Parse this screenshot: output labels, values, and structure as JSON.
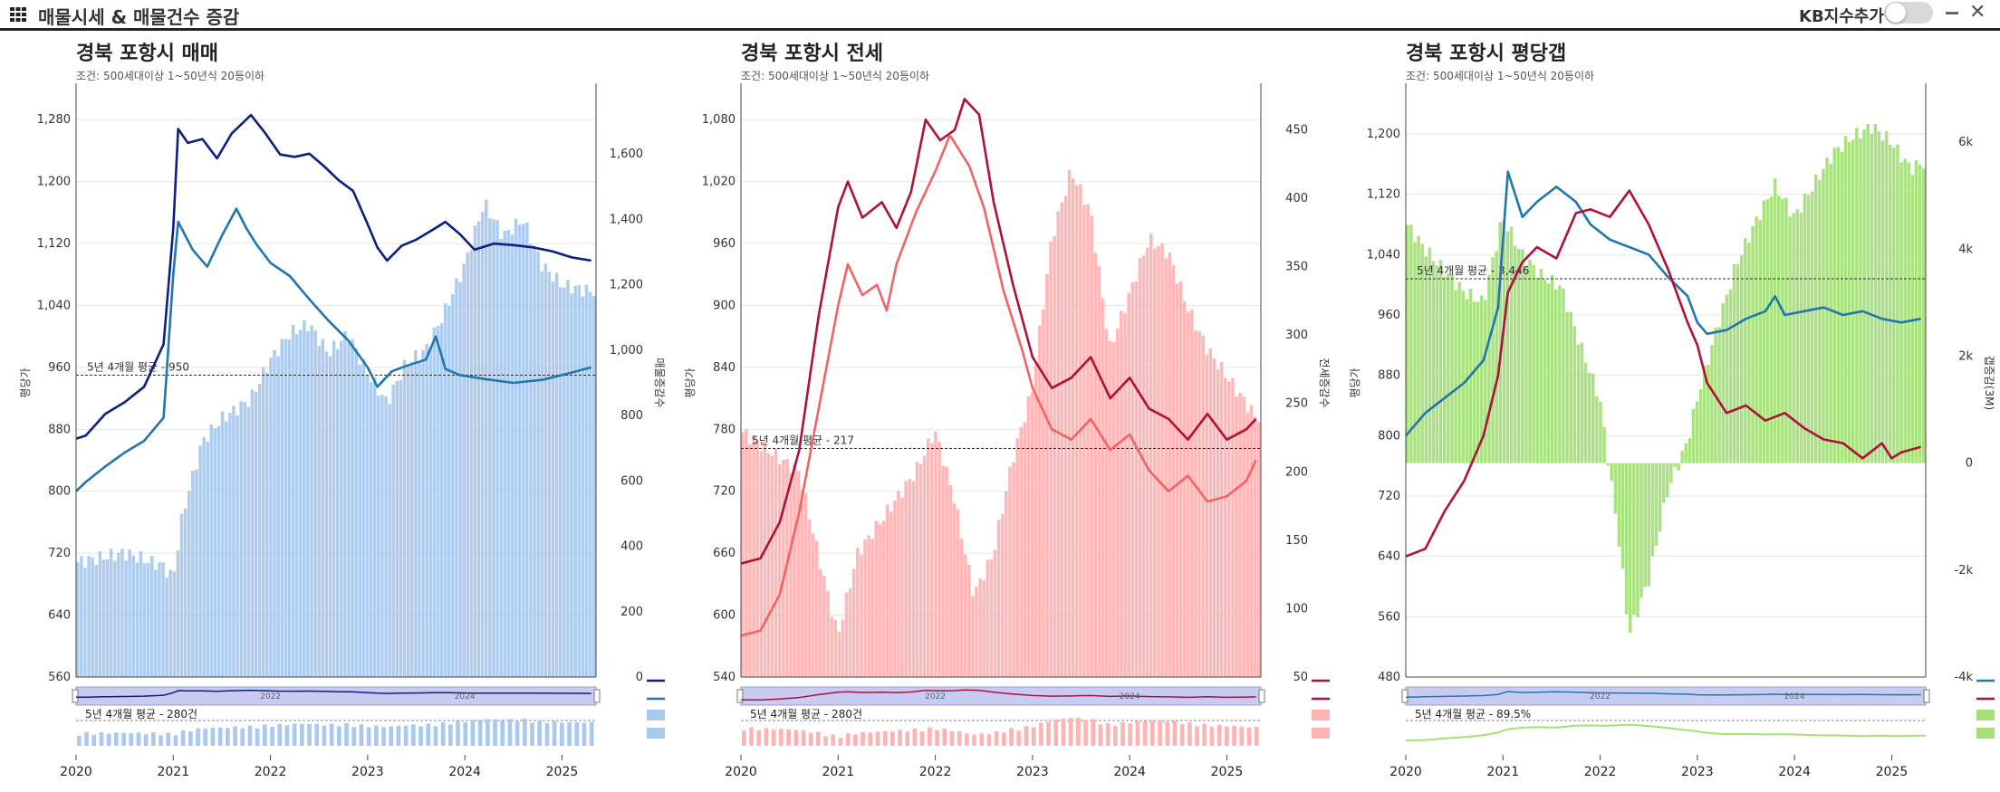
{
  "app": {
    "title": "매물시세 & 매물건수 증감",
    "kb_toggle_label": "KB지수추가",
    "kb_toggle_on": false
  },
  "icons": {
    "menu": "grid-menu-icon",
    "minimize": "minimize-icon",
    "close": "close-icon"
  },
  "chart_data": [
    {
      "type": "line",
      "title": "경북 포항시 매매",
      "subtitle": "조건: 500세대이상 1~50년식 20등이하",
      "ylabel_left": "평당가",
      "ylabel_right": "매물증감수",
      "x_ticks": [
        "2020",
        "2021",
        "2022",
        "2023",
        "2024",
        "2025"
      ],
      "x_range": [
        2020.0,
        2025.35
      ],
      "ylim_left": [
        560,
        1320
      ],
      "yticks_left": [
        560,
        640,
        720,
        800,
        880,
        960,
        1040,
        1120,
        1200,
        1280
      ],
      "ylim_right": [
        0,
        1800
      ],
      "yticks_right": [
        0,
        200,
        400,
        600,
        800,
        1000,
        1200,
        1400,
        1600
      ],
      "avg_label": "5년 4개월 평균 - 950",
      "avg_value": 950,
      "colors": {
        "line1": "#0d1f80",
        "line2": "#2176ae",
        "bars": "#a9c9ee"
      },
      "series": [
        {
          "kind": "line",
          "color": "#0d1f80",
          "x": [
            2020.0,
            2020.1,
            2020.3,
            2020.5,
            2020.7,
            2020.9,
            2021.0,
            2021.05,
            2021.15,
            2021.3,
            2021.45,
            2021.6,
            2021.8,
            2021.95,
            2022.1,
            2022.25,
            2022.4,
            2022.55,
            2022.7,
            2022.85,
            2023.0,
            2023.1,
            2023.2,
            2023.35,
            2023.5,
            2023.7,
            2023.8,
            2023.95,
            2024.1,
            2024.3,
            2024.5,
            2024.7,
            2024.9,
            2025.1,
            2025.3
          ],
          "y": [
            868,
            872,
            900,
            915,
            935,
            990,
            1140,
            1268,
            1250,
            1255,
            1230,
            1262,
            1286,
            1262,
            1235,
            1232,
            1236,
            1220,
            1202,
            1188,
            1145,
            1115,
            1098,
            1117,
            1125,
            1140,
            1148,
            1132,
            1112,
            1120,
            1118,
            1115,
            1110,
            1102,
            1098
          ]
        },
        {
          "kind": "line",
          "color": "#2176ae",
          "x": [
            2020.0,
            2020.1,
            2020.3,
            2020.5,
            2020.7,
            2020.9,
            2021.0,
            2021.05,
            2021.2,
            2021.35,
            2021.5,
            2021.65,
            2021.75,
            2021.85,
            2022.0,
            2022.2,
            2022.4,
            2022.6,
            2022.8,
            2023.0,
            2023.1,
            2023.25,
            2023.4,
            2023.6,
            2023.7,
            2023.75,
            2023.8,
            2023.95,
            2024.2,
            2024.5,
            2024.8,
            2025.0,
            2025.3
          ],
          "y": [
            800,
            812,
            832,
            850,
            865,
            895,
            1080,
            1148,
            1112,
            1090,
            1130,
            1165,
            1140,
            1120,
            1095,
            1078,
            1048,
            1020,
            995,
            960,
            935,
            955,
            962,
            970,
            1000,
            980,
            958,
            950,
            945,
            940,
            944,
            950,
            960
          ]
        },
        {
          "kind": "bar",
          "color": "#a9c9ee",
          "x": [
            2020.0,
            2020.5,
            2020.9,
            2021.0,
            2021.1,
            2021.3,
            2021.5,
            2021.8,
            2022.0,
            2022.2,
            2022.4,
            2022.6,
            2022.8,
            2023.0,
            2023.2,
            2023.4,
            2023.6,
            2023.8,
            2024.0,
            2024.2,
            2024.4,
            2024.6,
            2024.8,
            2025.0,
            2025.3
          ],
          "y": [
            350,
            380,
            340,
            300,
            500,
            720,
            790,
            850,
            970,
            1050,
            1080,
            990,
            1050,
            930,
            840,
            960,
            1000,
            1120,
            1260,
            1450,
            1350,
            1400,
            1260,
            1200,
            1180
          ]
        }
      ],
      "overview_avg_label": "5년 4개월 평균 - 280건",
      "overview_tick_labels": [
        "2022",
        "2024"
      ],
      "legend_swatches": [
        "#0d1f80",
        "#2176ae",
        "#a9c9ee",
        "#a9c9ee"
      ]
    },
    {
      "type": "line",
      "title": "경북 포항시 전세",
      "subtitle": "조건: 500세대이상 1~50년식 20등이하",
      "ylabel_left": "평당가",
      "ylabel_right": "전세증감수",
      "x_ticks": [
        "2020",
        "2021",
        "2022",
        "2023",
        "2024",
        "2025"
      ],
      "x_range": [
        2020.0,
        2025.35
      ],
      "ylim_left": [
        540,
        1110
      ],
      "yticks_left": [
        540,
        600,
        660,
        720,
        780,
        840,
        900,
        960,
        1020,
        1080
      ],
      "ylim_right": [
        50,
        480
      ],
      "yticks_right": [
        50,
        100,
        150,
        200,
        250,
        300,
        350,
        400,
        450
      ],
      "avg_label": "5년 4개월 평균 - 217",
      "avg_value": 217,
      "colors": {
        "line1": "#b0103a",
        "line2": "#f26464",
        "bars": "#ffb3b3"
      },
      "series": [
        {
          "kind": "line",
          "color": "#b0103a",
          "x": [
            2020.0,
            2020.2,
            2020.4,
            2020.6,
            2020.8,
            2021.0,
            2021.1,
            2021.25,
            2021.45,
            2021.6,
            2021.75,
            2021.9,
            2022.05,
            2022.2,
            2022.3,
            2022.45,
            2022.6,
            2022.8,
            2023.0,
            2023.2,
            2023.4,
            2023.6,
            2023.8,
            2024.0,
            2024.2,
            2024.4,
            2024.6,
            2024.8,
            2025.0,
            2025.2,
            2025.3
          ],
          "y": [
            650,
            655,
            690,
            760,
            890,
            995,
            1020,
            985,
            1000,
            975,
            1010,
            1080,
            1060,
            1070,
            1100,
            1085,
            1000,
            920,
            850,
            820,
            830,
            850,
            810,
            830,
            800,
            790,
            770,
            795,
            770,
            780,
            790
          ]
        },
        {
          "kind": "line",
          "color": "#f26464",
          "x": [
            2020.0,
            2020.2,
            2020.4,
            2020.6,
            2020.8,
            2021.0,
            2021.1,
            2021.25,
            2021.4,
            2021.5,
            2021.6,
            2021.8,
            2022.0,
            2022.15,
            2022.35,
            2022.5,
            2022.7,
            2022.9,
            2023.0,
            2023.2,
            2023.4,
            2023.6,
            2023.8,
            2024.0,
            2024.2,
            2024.4,
            2024.6,
            2024.8,
            2025.0,
            2025.2,
            2025.3
          ],
          "y": [
            580,
            585,
            620,
            700,
            800,
            900,
            940,
            910,
            920,
            895,
            940,
            990,
            1030,
            1065,
            1035,
            995,
            915,
            855,
            820,
            780,
            770,
            790,
            760,
            775,
            740,
            720,
            735,
            710,
            715,
            730,
            750
          ]
        },
        {
          "kind": "bar",
          "color": "#ffb3b3",
          "x": [
            2020.0,
            2020.3,
            2020.6,
            2020.8,
            2021.0,
            2021.2,
            2021.5,
            2021.8,
            2022.0,
            2022.2,
            2022.4,
            2022.6,
            2022.8,
            2023.0,
            2023.2,
            2023.4,
            2023.6,
            2023.8,
            2024.0,
            2024.2,
            2024.4,
            2024.6,
            2024.8,
            2025.0,
            2025.2,
            2025.3
          ],
          "y": [
            230,
            215,
            200,
            140,
            80,
            140,
            170,
            200,
            230,
            180,
            110,
            140,
            210,
            260,
            370,
            420,
            390,
            290,
            330,
            370,
            360,
            320,
            290,
            270,
            250,
            240
          ]
        }
      ],
      "overview_avg_label": "5년 4개월 평균 - 280건",
      "overview_tick_labels": [
        "2022",
        "2024"
      ],
      "legend_swatches": [
        "#b0103a",
        "#b0103a",
        "#ffb3b3",
        "#ffb3b3"
      ]
    },
    {
      "type": "line",
      "title": "경북 포항시 평당갭",
      "subtitle": "조건: 500세대이상 1~50년식 20등이하",
      "ylabel_left": "평당가",
      "ylabel_right": "갭증감(3M)",
      "x_ticks": [
        "2020",
        "2021",
        "2022",
        "2023",
        "2024",
        "2025"
      ],
      "x_range": [
        2020.0,
        2025.35
      ],
      "ylim_left": [
        480,
        1260
      ],
      "yticks_left": [
        480,
        560,
        640,
        720,
        800,
        880,
        960,
        1040,
        1120,
        1200
      ],
      "ylim_right": [
        -4000,
        7000
      ],
      "yticks_right": [
        -4000,
        -2000,
        0,
        2000,
        4000,
        6000
      ],
      "ytick_labels_right": [
        "-4k",
        "-2k",
        "0",
        "2k",
        "4k",
        "6k"
      ],
      "avg_label": "5년 4개월 평균 - 3,446",
      "avg_value": 3446,
      "colors": {
        "line1": "#2176ae",
        "line2": "#b0103a",
        "bars": "#a6e07a"
      },
      "series": [
        {
          "kind": "line",
          "color": "#2176ae",
          "x": [
            2020.0,
            2020.2,
            2020.4,
            2020.6,
            2020.8,
            2020.95,
            2021.05,
            2021.2,
            2021.35,
            2021.55,
            2021.75,
            2021.9,
            2022.1,
            2022.3,
            2022.5,
            2022.7,
            2022.9,
            2023.0,
            2023.1,
            2023.3,
            2023.5,
            2023.7,
            2023.8,
            2023.9,
            2024.1,
            2024.3,
            2024.5,
            2024.7,
            2024.9,
            2025.1,
            2025.3
          ],
          "y": [
            800,
            830,
            850,
            870,
            900,
            970,
            1150,
            1090,
            1110,
            1130,
            1110,
            1080,
            1060,
            1050,
            1040,
            1010,
            985,
            950,
            935,
            940,
            955,
            965,
            985,
            960,
            965,
            970,
            960,
            965,
            955,
            950,
            955
          ]
        },
        {
          "kind": "line",
          "color": "#b0103a",
          "x": [
            2020.0,
            2020.2,
            2020.4,
            2020.6,
            2020.8,
            2020.95,
            2021.05,
            2021.2,
            2021.35,
            2021.55,
            2021.75,
            2021.9,
            2022.1,
            2022.3,
            2022.5,
            2022.7,
            2022.9,
            2023.0,
            2023.1,
            2023.3,
            2023.5,
            2023.7,
            2023.9,
            2024.1,
            2024.3,
            2024.5,
            2024.7,
            2024.9,
            2025.0,
            2025.1,
            2025.3
          ],
          "y": [
            640,
            650,
            700,
            740,
            800,
            880,
            990,
            1030,
            1050,
            1035,
            1095,
            1100,
            1090,
            1125,
            1080,
            1020,
            950,
            920,
            870,
            830,
            840,
            820,
            830,
            810,
            795,
            790,
            770,
            790,
            770,
            778,
            785
          ]
        },
        {
          "kind": "bar",
          "color": "#a6e07a",
          "x": [
            2020.0,
            2020.2,
            2020.4,
            2020.6,
            2020.8,
            2021.0,
            2021.2,
            2021.4,
            2021.6,
            2021.8,
            2022.0,
            2022.2,
            2022.3,
            2022.5,
            2022.7,
            2022.9,
            2023.0,
            2023.2,
            2023.4,
            2023.6,
            2023.8,
            2024.0,
            2024.2,
            2024.4,
            2024.6,
            2024.8,
            2025.0,
            2025.2,
            2025.3
          ],
          "y": [
            4500,
            4000,
            3600,
            3200,
            3000,
            4600,
            3900,
            3500,
            3300,
            2200,
            1200,
            -1500,
            -3200,
            -2200,
            -500,
            400,
            1200,
            2500,
            3700,
            4500,
            5200,
            4600,
            5200,
            5800,
            6100,
            6300,
            6000,
            5500,
            5600
          ]
        }
      ],
      "overview_avg_label": "5년 4개월 평균 - 89.5%",
      "overview_tick_labels": [
        "2022",
        "2024"
      ],
      "legend_swatches": [
        "#2176ae",
        "#b0103a",
        "#a6e07a",
        "#a6e07a"
      ]
    }
  ],
  "panels": [
    {
      "left": "",
      "top": ""
    }
  ]
}
